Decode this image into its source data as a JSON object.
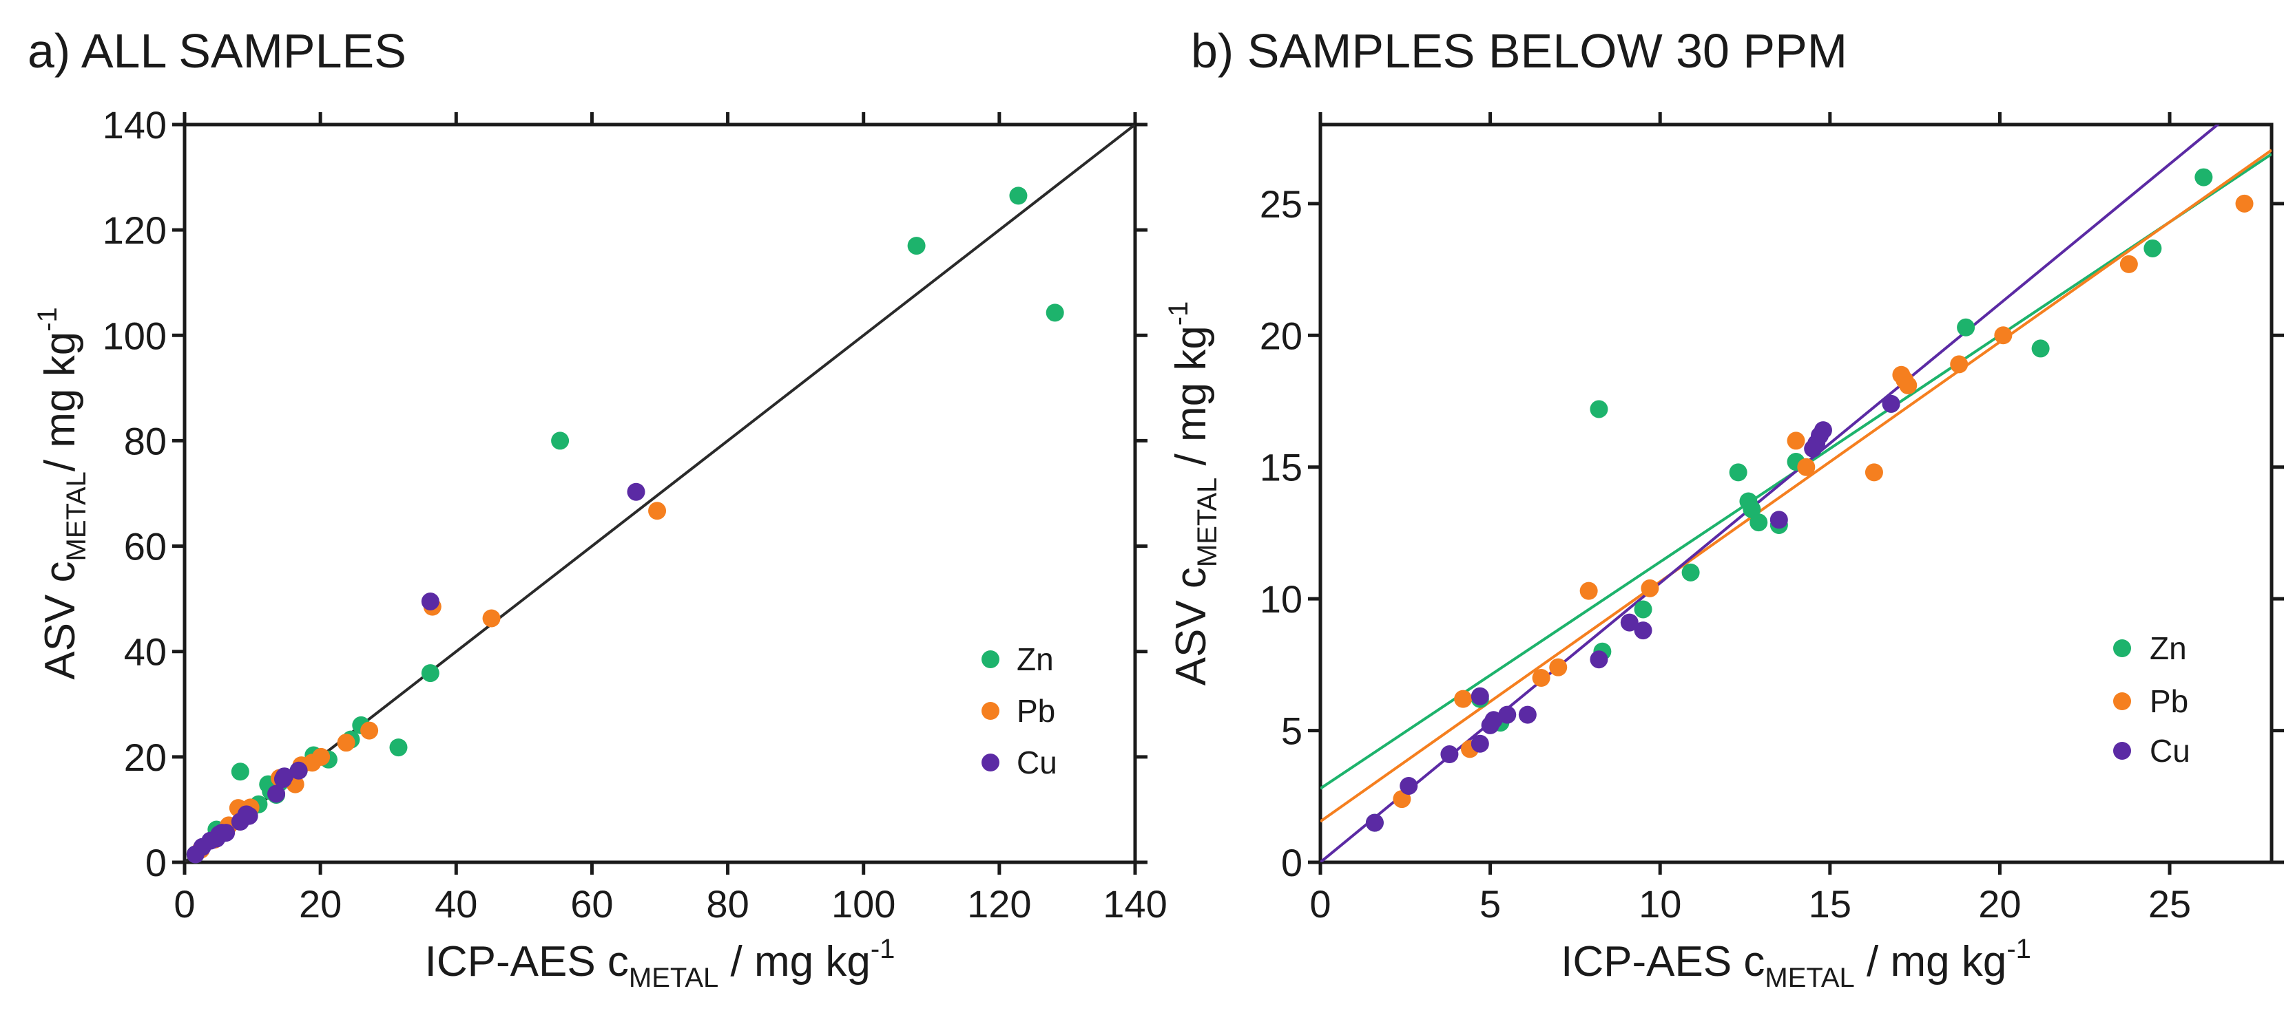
{
  "colors": {
    "Zn": "#1db36c",
    "Pb": "#f57f1f",
    "Cu": "#5b2aa4",
    "axis": "#1a1a1a",
    "identity": "#2a2a2a"
  },
  "chart_data": [
    {
      "type": "scatter",
      "title": "a) ALL SAMPLES",
      "xlabel": {
        "main": "ICP-AES c",
        "sub": "METAL",
        "rest": " / mg kg",
        "sup": "-1"
      },
      "ylabel": {
        "main": "ASV c",
        "sub": "METAL",
        "rest": "/ mg kg",
        "sup": "-1"
      },
      "xlim": [
        0,
        140
      ],
      "ylim": [
        0,
        140
      ],
      "xticks": [
        0,
        20,
        40,
        60,
        80,
        100,
        120,
        140
      ],
      "yticks": [
        0,
        20,
        40,
        60,
        80,
        100,
        120,
        140
      ],
      "xtick_labels": [
        "0",
        "20",
        "40",
        "60",
        "80",
        "100",
        "120",
        "140"
      ],
      "ytick_labels": [
        "0",
        "20",
        "40",
        "60",
        "80",
        "100",
        "120",
        "140"
      ],
      "reference_line": {
        "label": "y = x",
        "x": [
          0,
          140
        ],
        "y": [
          0,
          140
        ]
      },
      "legend": {
        "position": "bottom-right",
        "entries": [
          "Zn",
          "Pb",
          "Cu"
        ]
      },
      "series": [
        {
          "name": "Zn",
          "points": [
            [
              1.6,
              1.5
            ],
            [
              4.7,
              6.2
            ],
            [
              5.3,
              5.3
            ],
            [
              8.2,
              17.2
            ],
            [
              9.5,
              9.5
            ],
            [
              10.9,
              11.0
            ],
            [
              12.3,
              14.8
            ],
            [
              12.7,
              13.5
            ],
            [
              13.5,
              12.8
            ],
            [
              14.0,
              15.1
            ],
            [
              16.8,
              17.4
            ],
            [
              19.0,
              20.3
            ],
            [
              21.2,
              19.5
            ],
            [
              24.5,
              23.3
            ],
            [
              26.0,
              26.0
            ],
            [
              31.5,
              21.8
            ],
            [
              36.2,
              35.9
            ],
            [
              55.3,
              80.0
            ],
            [
              107.8,
              117.0
            ],
            [
              122.8,
              126.5
            ],
            [
              128.2,
              104.3
            ]
          ]
        },
        {
          "name": "Pb",
          "points": [
            [
              2.4,
              2.4
            ],
            [
              4.4,
              4.3
            ],
            [
              6.5,
              7.0
            ],
            [
              7.9,
              10.3
            ],
            [
              9.7,
              10.4
            ],
            [
              14.0,
              16.0
            ],
            [
              16.3,
              14.8
            ],
            [
              17.2,
              18.4
            ],
            [
              18.8,
              18.9
            ],
            [
              20.1,
              20.0
            ],
            [
              23.8,
              22.7
            ],
            [
              27.2,
              25.0
            ],
            [
              36.5,
              48.5
            ],
            [
              45.2,
              46.3
            ],
            [
              69.6,
              66.7
            ]
          ]
        },
        {
          "name": "Cu",
          "points": [
            [
              1.6,
              1.5
            ],
            [
              2.6,
              2.9
            ],
            [
              3.8,
              4.1
            ],
            [
              4.7,
              4.5
            ],
            [
              5.1,
              5.3
            ],
            [
              5.5,
              5.6
            ],
            [
              6.1,
              5.6
            ],
            [
              8.2,
              7.7
            ],
            [
              9.1,
              9.1
            ],
            [
              9.5,
              8.8
            ],
            [
              13.5,
              13.0
            ],
            [
              14.5,
              15.8
            ],
            [
              14.7,
              16.3
            ],
            [
              16.8,
              17.4
            ],
            [
              36.2,
              49.5
            ],
            [
              66.5,
              70.3
            ]
          ]
        }
      ]
    },
    {
      "type": "scatter",
      "title": "b) SAMPLES BELOW 30 PPM",
      "xlabel": {
        "main": "ICP-AES c",
        "sub": "METAL",
        "rest": " / mg kg",
        "sup": "-1"
      },
      "ylabel": {
        "main": "ASV c",
        "sub": "METAL",
        "rest": " / mg kg",
        "sup": "-1"
      },
      "xlim": [
        0,
        28
      ],
      "ylim": [
        0,
        28
      ],
      "xticks": [
        0,
        5,
        10,
        15,
        20,
        25
      ],
      "yticks": [
        0,
        5,
        10,
        15,
        20,
        25
      ],
      "xtick_labels": [
        "0",
        "5",
        "10",
        "15",
        "20",
        "25"
      ],
      "ytick_labels": [
        "0",
        "5",
        "10",
        "15",
        "20",
        "25"
      ],
      "legend": {
        "position": "bottom-right",
        "entries": [
          "Zn",
          "Pb",
          "Cu"
        ]
      },
      "fit_lines": [
        {
          "name": "Zn",
          "intercept": 2.8,
          "slope": 0.86
        },
        {
          "name": "Pb",
          "intercept": 1.55,
          "slope": 0.91
        },
        {
          "name": "Cu",
          "intercept": 0.0,
          "slope": 1.06
        }
      ],
      "series": [
        {
          "name": "Zn",
          "points": [
            [
              1.6,
              1.5
            ],
            [
              4.7,
              6.2
            ],
            [
              5.3,
              5.3
            ],
            [
              8.2,
              17.2
            ],
            [
              8.3,
              8.0
            ],
            [
              9.5,
              9.6
            ],
            [
              10.9,
              11.0
            ],
            [
              12.3,
              14.8
            ],
            [
              12.6,
              13.7
            ],
            [
              12.7,
              13.4
            ],
            [
              12.9,
              12.9
            ],
            [
              13.5,
              12.8
            ],
            [
              14.0,
              15.2
            ],
            [
              16.8,
              17.4
            ],
            [
              19.0,
              20.3
            ],
            [
              21.2,
              19.5
            ],
            [
              24.5,
              23.3
            ],
            [
              26.0,
              26.0
            ]
          ]
        },
        {
          "name": "Pb",
          "points": [
            [
              2.4,
              2.4
            ],
            [
              4.2,
              6.2
            ],
            [
              4.4,
              4.3
            ],
            [
              6.5,
              7.0
            ],
            [
              7.0,
              7.4
            ],
            [
              7.9,
              10.3
            ],
            [
              9.7,
              10.4
            ],
            [
              14.0,
              16.0
            ],
            [
              14.3,
              15.0
            ],
            [
              16.3,
              14.8
            ],
            [
              17.1,
              18.5
            ],
            [
              17.2,
              18.3
            ],
            [
              17.3,
              18.1
            ],
            [
              18.8,
              18.9
            ],
            [
              20.1,
              20.0
            ],
            [
              23.8,
              22.7
            ],
            [
              27.2,
              25.0
            ]
          ]
        },
        {
          "name": "Cu",
          "points": [
            [
              1.6,
              1.5
            ],
            [
              2.6,
              2.9
            ],
            [
              3.8,
              4.1
            ],
            [
              4.7,
              6.3
            ],
            [
              4.7,
              4.5
            ],
            [
              5.0,
              5.2
            ],
            [
              5.1,
              5.4
            ],
            [
              5.5,
              5.6
            ],
            [
              6.1,
              5.6
            ],
            [
              8.2,
              7.7
            ],
            [
              9.1,
              9.1
            ],
            [
              9.5,
              8.8
            ],
            [
              13.5,
              13.0
            ],
            [
              14.5,
              15.7
            ],
            [
              14.6,
              15.9
            ],
            [
              14.7,
              16.2
            ],
            [
              14.8,
              16.4
            ],
            [
              16.8,
              17.4
            ]
          ]
        }
      ]
    }
  ]
}
